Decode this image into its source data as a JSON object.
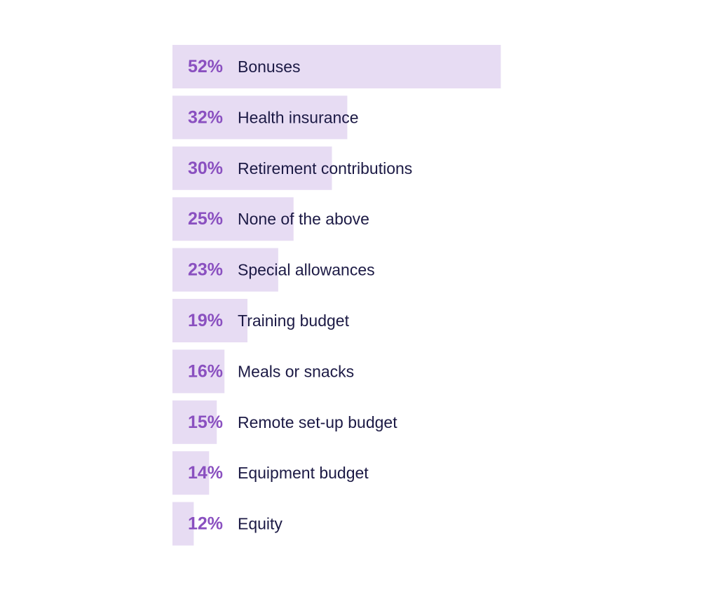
{
  "chart_data": {
    "type": "bar",
    "orientation": "horizontal",
    "title": "",
    "xlabel": "",
    "ylabel": "",
    "categories": [
      "Bonuses",
      "Health insurance",
      "Retirement contributions",
      "None of the above",
      "Special allowances",
      "Training budget",
      "Meals or snacks",
      "Remote set-up budget",
      "Equipment budget",
      "Equity"
    ],
    "values": [
      52,
      32,
      30,
      25,
      23,
      19,
      16,
      15,
      14,
      12
    ],
    "value_labels": [
      "52%",
      "32%",
      "30%",
      "25%",
      "23%",
      "19%",
      "16%",
      "15%",
      "14%",
      "12%"
    ],
    "grid": false,
    "legend": "none",
    "colors": {
      "bar": "#e7dcf3",
      "value_text": "#8a50c0",
      "label_text": "#1c1a45"
    }
  }
}
